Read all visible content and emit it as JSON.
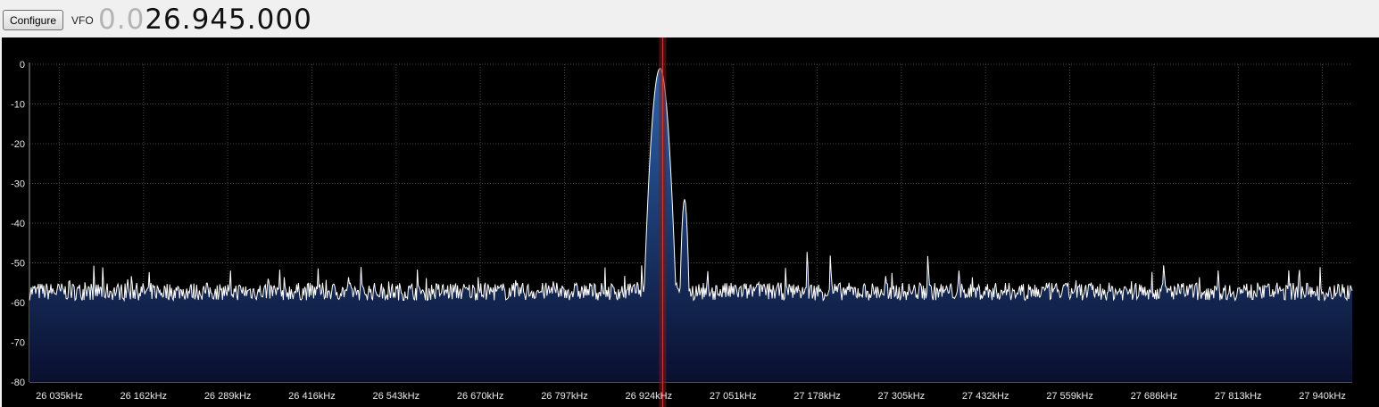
{
  "toolbar": {
    "configure_label": "Configure",
    "vfo_label": "VFO",
    "vfo_leading": "0.0",
    "vfo_value": "26.945.000"
  },
  "colors": {
    "background": "#000000",
    "grid": "#4a4a4a",
    "trace": "#ffffff",
    "fill_top": "#2c63ad",
    "fill_bottom": "#0a0f2e",
    "tuning_marker": "#7a1a1a",
    "tuning_center": "#d04040"
  },
  "chart_data": {
    "type": "area",
    "title": "",
    "xlabel": "",
    "ylabel": "",
    "x_unit": "kHz",
    "xlim": [
      25990,
      27985
    ],
    "ylim": [
      -80,
      0
    ],
    "y_ticks": [
      "0",
      "-10",
      "-20",
      "-30",
      "-40",
      "-50",
      "-60",
      "-70",
      "-80"
    ],
    "x_ticks": [
      "26 035kHz",
      "26 162kHz",
      "26 289kHz",
      "26 416kHz",
      "26 543kHz",
      "26 670kHz",
      "26 797kHz",
      "26 924kHz",
      "27 051kHz",
      "27 178kHz",
      "27 305kHz",
      "27 432kHz",
      "27 559kHz",
      "27 686kHz",
      "27 813kHz",
      "27 940kHz"
    ],
    "x_tick_values": [
      26035,
      26162,
      26289,
      26416,
      26543,
      26670,
      26797,
      26924,
      27051,
      27178,
      27305,
      27432,
      27559,
      27686,
      27813,
      27940
    ],
    "grid": true,
    "tuned_frequency_khz": 26945,
    "noise_floor_db": -56,
    "peaks": [
      {
        "x": 26941,
        "y": -1
      },
      {
        "x": 26936,
        "y": -30
      },
      {
        "x": 26978,
        "y": -34
      },
      {
        "x": 27163,
        "y": -47
      },
      {
        "x": 27198,
        "y": -48
      },
      {
        "x": 27345,
        "y": -48
      },
      {
        "x": 27701,
        "y": -50
      },
      {
        "x": 27905,
        "y": -51
      },
      {
        "x": 26050,
        "y": -53
      },
      {
        "x": 26490,
        "y": -51
      }
    ]
  }
}
